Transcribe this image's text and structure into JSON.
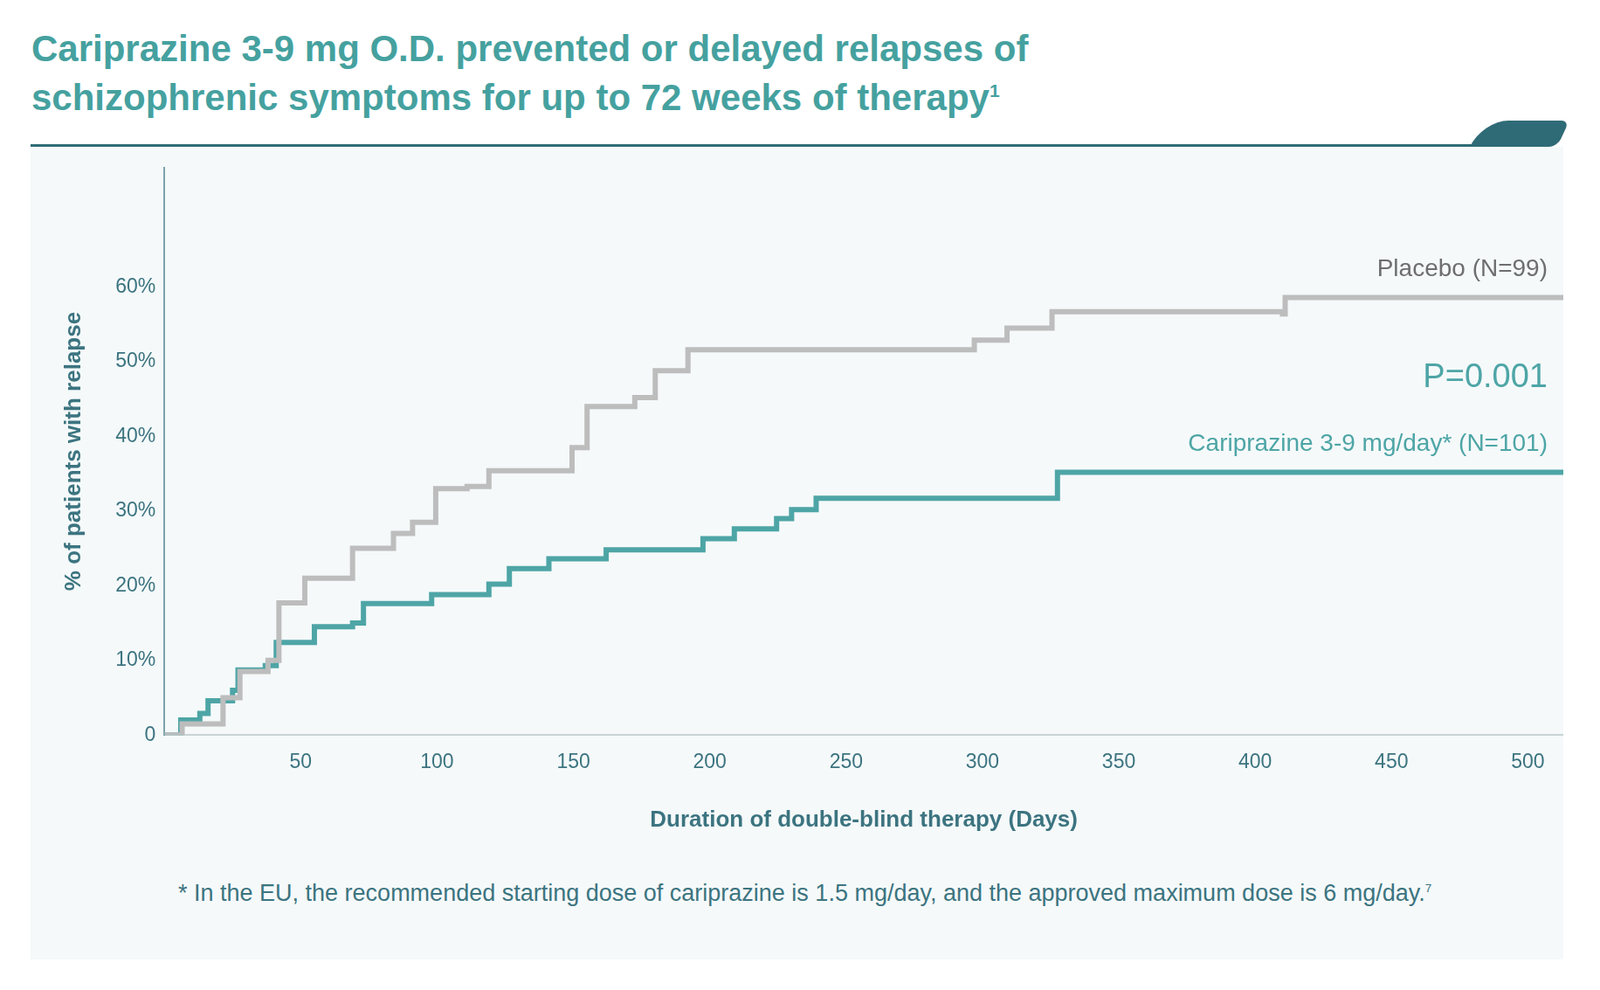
{
  "chart_data": {
    "type": "line",
    "title": "Cariprazine 3-9 mg O.D. prevented or delayed relapses of schizophrenic symptoms for up to 72 weeks of therapy",
    "title_superscript": "1",
    "x_label": "Duration of double-blind therapy (Days)",
    "y_label": "% of patients with relapse",
    "annotation": "P=0.001",
    "footnote": "* In the EU, the recommended starting dose of cariprazine is 1.5 mg/day, and the approved maximum dose is 6 mg/day.",
    "footnote_superscript": "7",
    "line_style": "steps",
    "grid": false,
    "xlim": [
      0,
      513
    ],
    "xticks": [
      50,
      100,
      150,
      200,
      250,
      300,
      350,
      400,
      450,
      500
    ],
    "ylim": [
      0,
      76
    ],
    "yticks": [
      0,
      {
        "value": 10,
        "label": "10%"
      },
      {
        "value": 20,
        "label": "20%"
      },
      {
        "value": 30,
        "label": "30%"
      },
      {
        "value": 40,
        "label": "40%"
      },
      {
        "value": 50,
        "label": "50%"
      },
      {
        "value": 60,
        "label": "60%"
      }
    ],
    "series": [
      {
        "name": "Placebo (N=99)",
        "color": "#bdbdbd",
        "x": [
          0,
          6.5,
          21.5,
          27.7,
          38,
          42,
          51.5,
          69,
          84,
          91,
          99.5,
          111,
          119,
          149.5,
          155,
          172.5,
          180,
          192,
          297,
          309,
          325.5,
          410,
          411,
          513
        ],
        "values": [
          0,
          1.5,
          5,
          8.5,
          10,
          17.7,
          21,
          25,
          27,
          28.5,
          33,
          33.3,
          35.4,
          38.5,
          44,
          45.2,
          48.8,
          51.6,
          52.9,
          54.5,
          56.7,
          56.4,
          58.6,
          58.6
        ]
      },
      {
        "name": "Cariprazine 3-9 mg/day* (N=101)",
        "color": "#4ea5a6",
        "x": [
          0,
          6,
          13,
          16,
          25,
          27,
          37,
          41,
          55,
          69,
          73,
          98,
          119,
          126.5,
          141,
          162,
          197.5,
          209,
          224.5,
          230,
          239,
          327.5,
          513
        ],
        "values": [
          0,
          2,
          2.9,
          4.6,
          6,
          8.7,
          9.3,
          12.4,
          14.5,
          15,
          17.6,
          18.8,
          20.2,
          22.3,
          23.6,
          24.8,
          26.3,
          27.6,
          29,
          30.2,
          31.7,
          35.2,
          35.2
        ]
      }
    ]
  }
}
